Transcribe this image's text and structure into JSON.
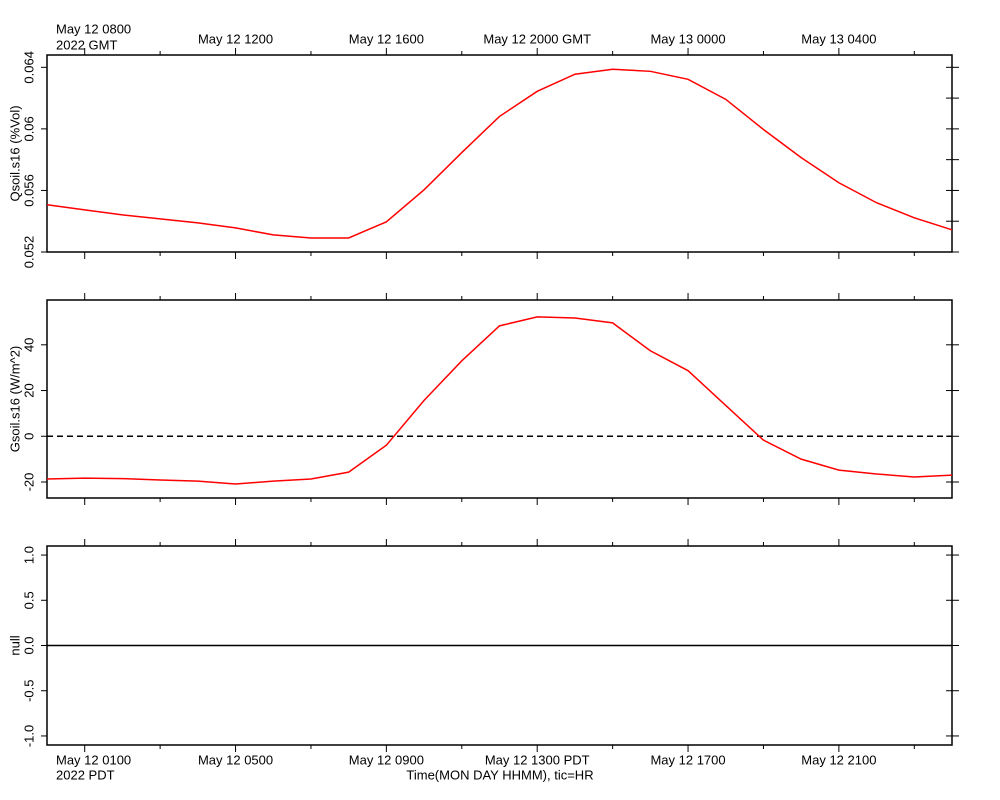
{
  "chart_data": [
    {
      "type": "line",
      "ylabel": "Qsoil.s16 (%Vol)",
      "xlim": [
        0,
        24
      ],
      "top_xticks": [
        {
          "value": 1,
          "label": "May 12 0800"
        },
        {
          "value": 5,
          "label": "May 12 1200"
        },
        {
          "value": 9,
          "label": "May 12 1600"
        },
        {
          "value": 13,
          "label": "May 12 2000 GMT"
        },
        {
          "value": 17,
          "label": "May 13 0000"
        },
        {
          "value": 21,
          "label": "May 13 0400"
        }
      ],
      "top_x_note": "2022 GMT",
      "ylim": [
        0.052,
        0.0648
      ],
      "yticks": [
        0.052,
        0.056,
        0.06,
        0.064
      ],
      "yticks_minor": [
        0.054,
        0.058,
        0.062
      ],
      "x": [
        0,
        1,
        2,
        3,
        4,
        5,
        6,
        7,
        8,
        9,
        10,
        11,
        12,
        13,
        14,
        15,
        16,
        17,
        18,
        19,
        20,
        21,
        22,
        23,
        24
      ],
      "series": [
        {
          "name": "Qsoil.s16",
          "color": "#ff0000",
          "values": [
            0.05507,
            0.05474,
            0.05441,
            0.05415,
            0.05389,
            0.05357,
            0.05311,
            0.05291,
            0.05291,
            0.05396,
            0.05604,
            0.05846,
            0.06081,
            0.06244,
            0.06355,
            0.06387,
            0.06374,
            0.06322,
            0.06192,
            0.05996,
            0.05813,
            0.0565,
            0.0552,
            0.05422,
            0.05344
          ]
        }
      ],
      "hlines": []
    },
    {
      "type": "line",
      "ylabel": "Gsoil.s16 (W/m^2)",
      "xlim": [
        0,
        24
      ],
      "ylim": [
        -27,
        59.6
      ],
      "yticks": [
        -20,
        0,
        20,
        40
      ],
      "yticks_minor": [],
      "x": [
        0,
        1,
        2,
        3,
        4,
        5,
        6,
        7,
        8,
        9,
        10,
        11,
        12,
        13,
        14,
        15,
        16,
        17,
        18,
        19,
        20,
        21,
        22,
        23,
        24
      ],
      "series": [
        {
          "name": "Gsoil.s16",
          "color": "#ff0000",
          "values": [
            -18.7,
            -18.3,
            -18.5,
            -19.1,
            -19.6,
            -20.9,
            -19.6,
            -18.7,
            -15.7,
            -3.9,
            15.7,
            33.0,
            48.3,
            52.2,
            51.7,
            49.6,
            37.4,
            28.7,
            13.5,
            -1.7,
            -10.0,
            -14.8,
            -16.5,
            -17.8,
            -17.0
          ]
        }
      ],
      "hlines": [
        {
          "value": 0,
          "style": "dashed"
        }
      ]
    },
    {
      "type": "line",
      "ylabel": "null",
      "xlim": [
        0,
        24
      ],
      "ylim": [
        -1.1,
        1.1
      ],
      "yticks": [
        {
          "value": -1,
          "label": "-1.0"
        },
        {
          "value": -0.5,
          "label": "-0.5"
        },
        {
          "value": 0,
          "label": "0.0"
        },
        {
          "value": 0.5,
          "label": "0.5"
        },
        {
          "value": 1,
          "label": "1.0"
        }
      ],
      "yticks_minor": [],
      "x": [],
      "series": [],
      "hlines": [
        {
          "value": 0,
          "style": "solid"
        }
      ],
      "xticks": [
        {
          "value": 1,
          "label": "May 12 0100"
        },
        {
          "value": 5,
          "label": "May 12 0500"
        },
        {
          "value": 9,
          "label": "May 12 0900"
        },
        {
          "value": 13,
          "label": "May 12 1300 PDT"
        },
        {
          "value": 17,
          "label": "May 12 1700"
        },
        {
          "value": 21,
          "label": "May 12 2100"
        }
      ],
      "xticks_minor": [
        3,
        7,
        11,
        15,
        19,
        23
      ],
      "x_note": "2022 PDT",
      "xlabel": "Time(MON DAY HHMM), tic=HR"
    }
  ]
}
